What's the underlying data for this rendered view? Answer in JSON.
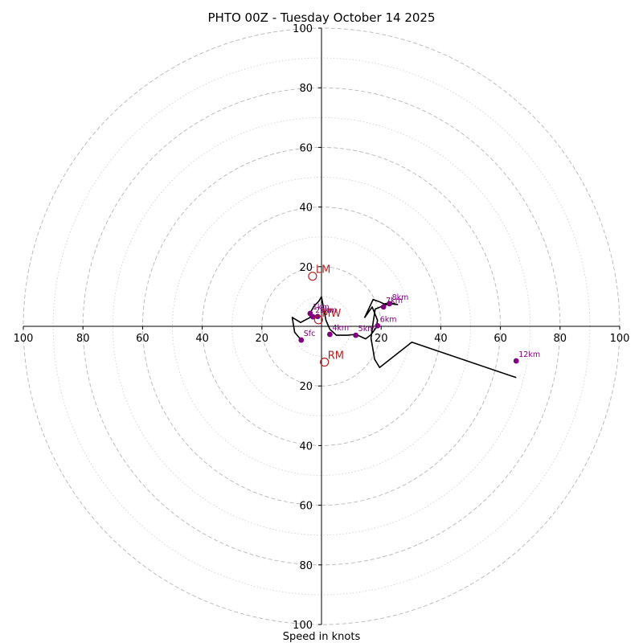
{
  "chart_data": {
    "type": "scatter",
    "title": "PHTO 00Z - Tuesday October 14 2025",
    "xlabel": "Speed in knots",
    "ylabel": "",
    "xlim": [
      -100,
      100
    ],
    "ylim": [
      -100,
      100
    ],
    "rings_major": [
      20,
      40,
      60,
      80,
      100
    ],
    "rings_minor": [
      10,
      30,
      50,
      70,
      90
    ],
    "x_ticks": [
      {
        "v": -100,
        "label": "100"
      },
      {
        "v": -80,
        "label": "80"
      },
      {
        "v": -60,
        "label": "60"
      },
      {
        "v": -40,
        "label": "40"
      },
      {
        "v": -20,
        "label": "20"
      },
      {
        "v": 20,
        "label": "20"
      },
      {
        "v": 40,
        "label": "40"
      },
      {
        "v": 60,
        "label": "60"
      },
      {
        "v": 80,
        "label": "80"
      },
      {
        "v": 100,
        "label": "100"
      }
    ],
    "y_ticks": [
      {
        "v": 100,
        "label": "100"
      },
      {
        "v": 80,
        "label": "80"
      },
      {
        "v": 60,
        "label": "60"
      },
      {
        "v": 40,
        "label": "40"
      },
      {
        "v": 20,
        "label": "20"
      },
      {
        "v": -20,
        "label": "20"
      },
      {
        "v": -40,
        "label": "40"
      },
      {
        "v": -60,
        "label": "60"
      },
      {
        "v": -80,
        "label": "80"
      },
      {
        "v": -100,
        "label": "100"
      }
    ],
    "hodograph": {
      "color": "#000000",
      "u": [
        -6.8,
        -9.0,
        -9.8,
        -7.0,
        -3.8,
        -3.5,
        -2.5,
        -1.0,
        0.0,
        0.8,
        1.5,
        2.8,
        5.0,
        8.7,
        11.5,
        14.8,
        16.5,
        18.3,
        18.8,
        17.0,
        14.5,
        17.3,
        19.3,
        21.0,
        23.0,
        25.5,
        22.8,
        20.5,
        18.0,
        17.3,
        16.6,
        17.3,
        17.8,
        19.5,
        30.3,
        65.3
      ],
      "v": [
        -4.6,
        -2.0,
        3.0,
        1.3,
        3.0,
        5.0,
        6.8,
        8.3,
        9.9,
        5.5,
        2.0,
        -1.0,
        -3.0,
        -3.0,
        -2.7,
        -4.2,
        -2.9,
        -0.5,
        2.0,
        6.5,
        3.0,
        9.0,
        8.3,
        7.5,
        7.9,
        7.3,
        7.6,
        6.8,
        5.8,
        1.2,
        -4.0,
        -8.0,
        -11.0,
        -13.8,
        -5.3,
        -17.2
      ]
    },
    "height_markers": [
      {
        "label": "Sfc",
        "u": -6.8,
        "v": -4.6
      },
      {
        "label": "1km",
        "u": -3.8,
        "v": 4.3
      },
      {
        "label": "2km",
        "u": -2.9,
        "v": 3.2
      },
      {
        "label": "3km",
        "u": -1.3,
        "v": 3.3
      },
      {
        "label": "4km",
        "u": 2.8,
        "v": -2.7
      },
      {
        "label": "5km",
        "u": 11.5,
        "v": -3.0
      },
      {
        "label": "6km",
        "u": 18.8,
        "v": 0.2
      },
      {
        "label": "7km",
        "u": 20.8,
        "v": 6.5
      },
      {
        "label": "8km",
        "u": 22.8,
        "v": 7.6
      },
      {
        "label": "12km",
        "u": 65.3,
        "v": -11.6
      }
    ],
    "storm_motions": [
      {
        "label": "LM",
        "u": -3.0,
        "v": 16.8
      },
      {
        "label": "MW",
        "u": -1.0,
        "v": 2.2
      },
      {
        "label": "RM",
        "u": 1.0,
        "v": -12.0
      }
    ]
  }
}
